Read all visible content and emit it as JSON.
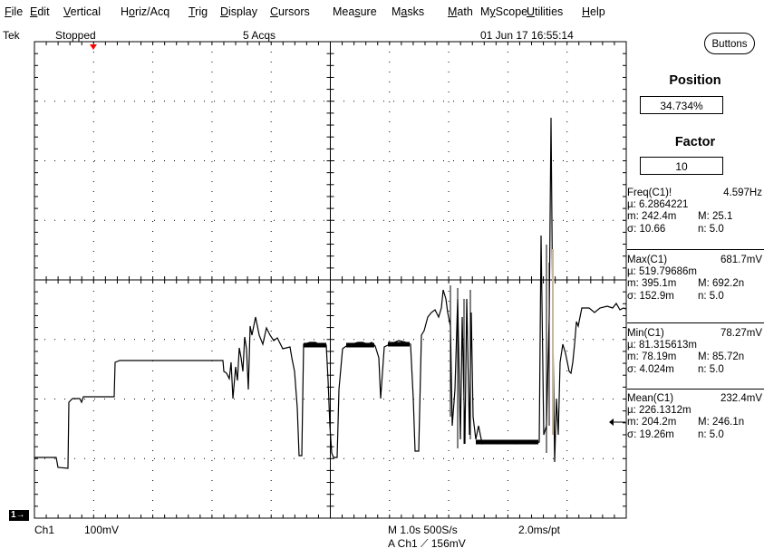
{
  "menu": [
    {
      "label": "File",
      "key": "F"
    },
    {
      "label": "Edit",
      "key": "E"
    },
    {
      "label": "Vertical",
      "key": "V"
    },
    {
      "label": "Horiz/Acq",
      "key": "o"
    },
    {
      "label": "Trig",
      "key": "T"
    },
    {
      "label": "Display",
      "key": "D"
    },
    {
      "label": "Cursors",
      "key": "C"
    },
    {
      "label": "Measure",
      "key": "s"
    },
    {
      "label": "Masks",
      "key": "a"
    },
    {
      "label": "Math",
      "key": "M"
    },
    {
      "label": "MyScope",
      "key": "y"
    },
    {
      "label": "Utilities",
      "key": "U"
    },
    {
      "label": "Help",
      "key": "H"
    }
  ],
  "status": {
    "brand": "Tek",
    "run_state": "Stopped",
    "acqs": "5 Acqs",
    "datetime": "01 Jun 17 16:55:14"
  },
  "panel": {
    "buttons_label": "Buttons",
    "position_label": "Position",
    "position_value": "34.734%",
    "factor_label": "Factor",
    "factor_value": "10"
  },
  "measurements": [
    {
      "title": "Freq(C1)!",
      "value": "4.597Hz",
      "mu": "µ: 6.2864221",
      "m": "m: 242.4m",
      "M": "M: 25.1",
      "sigma": "σ: 10.66",
      "n": "n: 5.0"
    },
    {
      "title": "Max(C1)",
      "value": "681.7mV",
      "mu": "µ: 519.79686m",
      "m": "m: 395.1m",
      "M": "M: 692.2n",
      "sigma": "σ: 152.9m",
      "n": "n: 5.0"
    },
    {
      "title": "Min(C1)",
      "value": "78.27mV",
      "mu": "µ: 81.315613m",
      "m": "m: 78.19m",
      "M": "M: 85.72n",
      "sigma": "σ: 4.024m",
      "n": "n: 5.0"
    },
    {
      "title": "Mean(C1)",
      "value": "232.4mV",
      "mu": "µ: 226.1312m",
      "m": "m: 204.2m",
      "M": "M: 246.1n",
      "sigma": "σ: 19.26m",
      "n": "n: 5.0"
    }
  ],
  "bottom": {
    "channel": "Ch1",
    "scale": "100mV",
    "timebase": "M 1.0s 500S/s",
    "resolution": "2.0ms/pt",
    "trigger": "A  Ch1  ⟋  156mV",
    "ch_marker": "1→"
  },
  "colors": {
    "trace": "#000000",
    "grid": "#000000",
    "trigger_marker": "#ff0000",
    "spike_highlight": "#c8b49a"
  },
  "icons": {
    "trigger_position": "red-down-triangle",
    "mean_level": "left-arrow",
    "trigger_slope": "rising-edge"
  }
}
